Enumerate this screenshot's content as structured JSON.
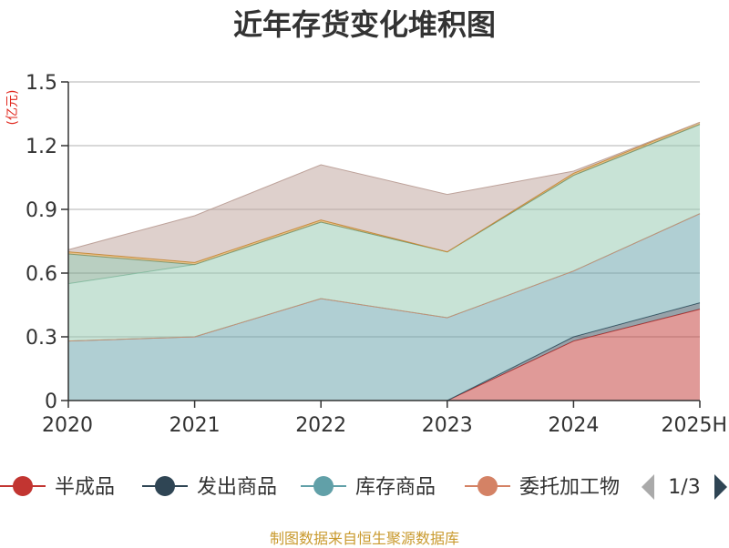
{
  "title": "近年存货变化堆积图",
  "unit": "(亿元)",
  "source": "制图数据来自恒生聚源数据库",
  "legend_page": "1/3",
  "chart_data": {
    "type": "area",
    "stacked": true,
    "x": [
      "2020",
      "2021",
      "2022",
      "2023",
      "2024",
      "2025H"
    ],
    "ylim": [
      0,
      1.5
    ],
    "yticks": [
      "0",
      "0.3",
      "0.6",
      "0.9",
      "1.2",
      "1.5"
    ],
    "grid": true,
    "legend_position": "bottom",
    "series": [
      {
        "name": "半成品",
        "color": "#c23531",
        "values": [
          0,
          0,
          0,
          0,
          0.28,
          0.43
        ]
      },
      {
        "name": "发出商品",
        "color": "#2f4554",
        "values": [
          0,
          0,
          0,
          0,
          0.02,
          0.03
        ]
      },
      {
        "name": "库存商品",
        "color": "#61a0a8",
        "values": [
          0.28,
          0.3,
          0.48,
          0.39,
          0.31,
          0.42
        ]
      },
      {
        "name": "委托加工物",
        "color": "#d48265",
        "values": [
          0,
          0,
          0,
          0,
          0,
          0
        ]
      },
      {
        "color": "#91c7ae",
        "values": [
          0.27,
          0.34,
          0.36,
          0.31,
          0.45,
          0.42
        ]
      },
      {
        "color": "#749f83",
        "values": [
          0.14,
          0,
          0,
          0,
          0,
          0
        ]
      },
      {
        "color": "#ca8622",
        "values": [
          0.01,
          0.01,
          0.01,
          0,
          0.01,
          0.01
        ]
      },
      {
        "color": "#bda29a",
        "values": [
          0.01,
          0.22,
          0.26,
          0.27,
          0.01,
          0
        ]
      }
    ],
    "visible_legend_count": 4
  }
}
